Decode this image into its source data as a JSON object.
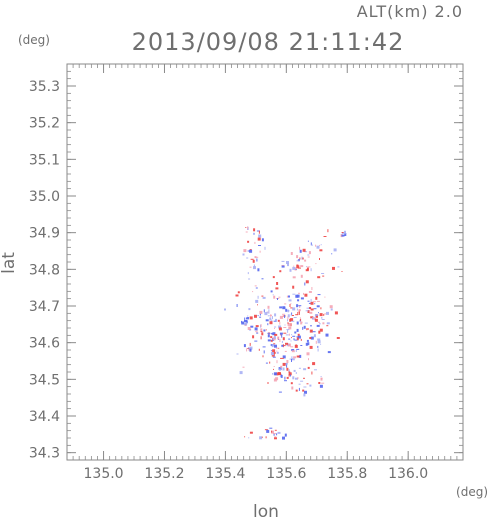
{
  "chart_data": {
    "type": "scatter",
    "title": "2013/09/08 21:11:42",
    "subtitle": "ALT(km) 2.0",
    "xlabel": "lon",
    "ylabel": "lat",
    "x_unit": "(deg)",
    "y_unit": "(deg)",
    "xlim": [
      134.88,
      136.18
    ],
    "ylim": [
      34.28,
      35.36
    ],
    "x_ticks": [
      135.0,
      135.2,
      135.4,
      135.6,
      135.8,
      136.0
    ],
    "x_tick_labels": [
      "135.0",
      "135.2",
      "135.4",
      "135.6",
      "135.8",
      "136.0"
    ],
    "y_ticks": [
      34.3,
      34.4,
      34.5,
      34.6,
      34.7,
      34.8,
      34.9,
      35.0,
      35.1,
      35.2,
      35.3
    ],
    "y_tick_labels": [
      "34.3",
      "34.4",
      "34.5",
      "34.6",
      "34.7",
      "34.8",
      "34.9",
      "35.0",
      "35.1",
      "35.2",
      "35.3"
    ],
    "grid": false,
    "colors": {
      "positive": "#ee4444",
      "negative": "#5566ee",
      "weak_pos": "#f4a4b4",
      "weak_neg": "#a8b0f4"
    },
    "clusters": [
      {
        "lon": 135.505,
        "lat": 34.845,
        "spread_lon": 0.025,
        "spread_lat": 0.03,
        "n": 30
      },
      {
        "lon": 135.47,
        "lat": 34.915,
        "spread_lon": 0.004,
        "spread_lat": 0.004,
        "n": 3
      },
      {
        "lon": 135.64,
        "lat": 34.815,
        "spread_lon": 0.03,
        "spread_lat": 0.02,
        "n": 30
      },
      {
        "lon": 135.71,
        "lat": 34.84,
        "spread_lon": 0.03,
        "spread_lat": 0.03,
        "n": 25
      },
      {
        "lon": 135.79,
        "lat": 34.895,
        "spread_lon": 0.008,
        "spread_lat": 0.006,
        "n": 6
      },
      {
        "lon": 135.56,
        "lat": 34.65,
        "spread_lon": 0.06,
        "spread_lat": 0.06,
        "n": 150
      },
      {
        "lon": 135.65,
        "lat": 34.665,
        "spread_lon": 0.05,
        "spread_lat": 0.05,
        "n": 110
      },
      {
        "lon": 135.7,
        "lat": 34.67,
        "spread_lon": 0.02,
        "spread_lat": 0.03,
        "n": 25
      },
      {
        "lon": 135.6,
        "lat": 34.57,
        "spread_lon": 0.04,
        "spread_lat": 0.04,
        "n": 50
      },
      {
        "lon": 135.46,
        "lat": 34.655,
        "spread_lon": 0.01,
        "spread_lat": 0.01,
        "n": 8
      },
      {
        "lon": 135.475,
        "lat": 34.585,
        "spread_lon": 0.008,
        "spread_lat": 0.008,
        "n": 6
      },
      {
        "lon": 135.62,
        "lat": 34.51,
        "spread_lon": 0.03,
        "spread_lat": 0.02,
        "n": 25
      },
      {
        "lon": 135.66,
        "lat": 34.48,
        "spread_lon": 0.01,
        "spread_lat": 0.01,
        "n": 6
      },
      {
        "lon": 135.71,
        "lat": 34.495,
        "spread_lon": 0.008,
        "spread_lat": 0.008,
        "n": 6
      },
      {
        "lon": 135.52,
        "lat": 34.35,
        "spread_lon": 0.05,
        "spread_lat": 0.012,
        "n": 20
      }
    ]
  }
}
